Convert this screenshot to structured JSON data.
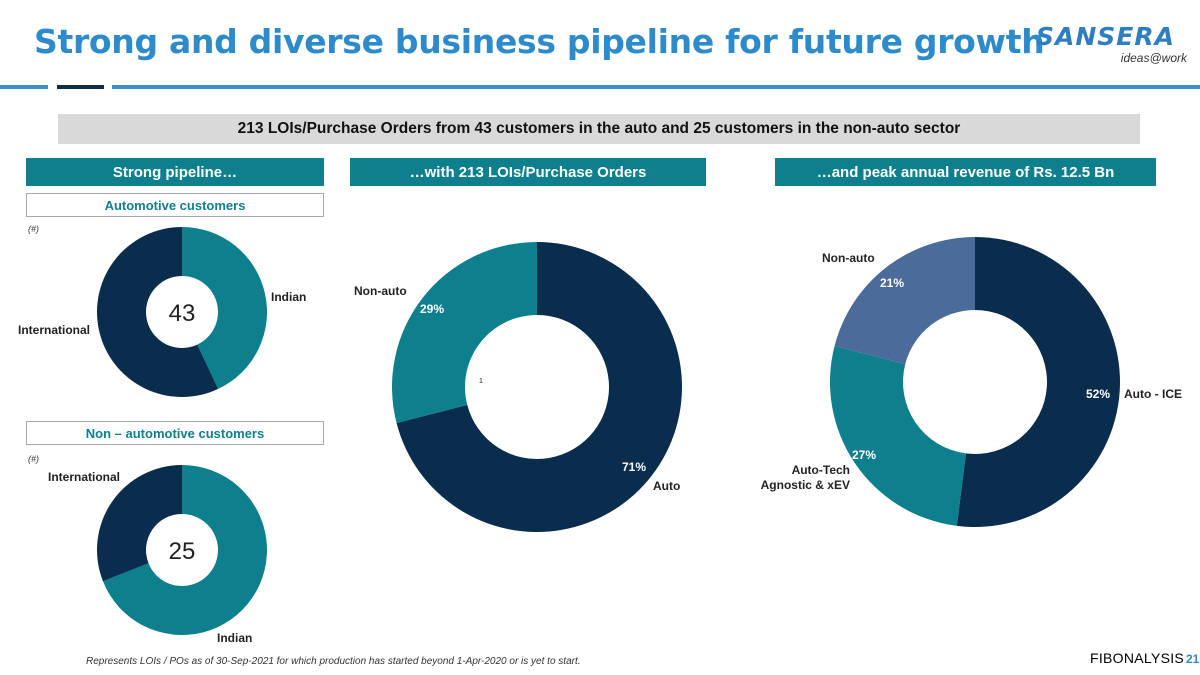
{
  "title": "Strong and diverse business pipeline for future growth",
  "logo": {
    "brand": "SANSERA",
    "tagline": "ideas@work"
  },
  "banner": "213 LOIs/Purchase Orders from 43 customers in the auto and 25 customers in the non-auto sector",
  "sections": {
    "left": "Strong pipeline…",
    "middle": "…with 213 LOIs/Purchase Orders",
    "right": "…and peak annual revenue of Rs. 12.5 Bn"
  },
  "auto_subheader": "Automotive customers",
  "nonauto_subheader": "Non – automotive customers",
  "unit_label": "(#)",
  "footnote": "Represents LOIs / POs as of 30-Sep-2021 for which production has started beyond 1-Apr-2020 or is yet to start.",
  "watermark": "FIBONALYSIS",
  "page_number": "21",
  "colors": {
    "navy": "#0a2d4d",
    "teal": "#0e7f8d",
    "slate": "#4b6b9a",
    "accent": "#2e8bcb"
  },
  "chart_data": [
    {
      "type": "pie",
      "title": "Automotive customers",
      "center_label": "43",
      "slices": [
        {
          "label": "Indian",
          "value": 43,
          "color": "#0e7f8d"
        },
        {
          "label": "International",
          "value": 57,
          "color": "#0a2d4d"
        }
      ]
    },
    {
      "type": "pie",
      "title": "Non – automotive customers",
      "center_label": "25",
      "slices": [
        {
          "label": "Indian",
          "value": 69,
          "color": "#0e7f8d"
        },
        {
          "label": "International",
          "value": 31,
          "color": "#0a2d4d"
        }
      ]
    },
    {
      "type": "pie",
      "title": "…with 213 LOIs/Purchase Orders",
      "center_label": "1",
      "slices": [
        {
          "label": "Auto",
          "value": 71,
          "value_label": "71%",
          "color": "#0a2d4d"
        },
        {
          "label": "Non-auto",
          "value": 29,
          "value_label": "29%",
          "color": "#0e7f8d"
        }
      ]
    },
    {
      "type": "pie",
      "title": "…and peak annual revenue of Rs. 12.5 Bn",
      "slices": [
        {
          "label": "Auto - ICE",
          "value": 52,
          "value_label": "52%",
          "color": "#0a2d4d"
        },
        {
          "label": "Auto-Tech\nAgnostic & xEV",
          "value": 27,
          "value_label": "27%",
          "color": "#0e7f8d"
        },
        {
          "label": "Non-auto",
          "value": 21,
          "value_label": "21%",
          "color": "#4b6b9a"
        }
      ]
    }
  ]
}
